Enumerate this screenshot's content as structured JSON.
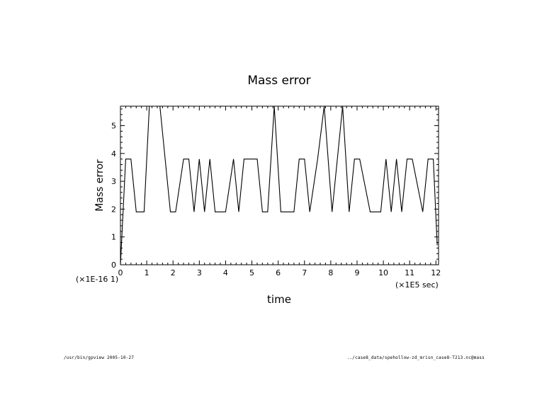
{
  "chart_data": {
    "type": "line",
    "title": "Mass error",
    "xlabel": "time",
    "ylabel": "Mass error",
    "x_unit_label": "(×1E5 sec)",
    "y_unit_label": "(×1E-16 1)",
    "xlim": [
      0,
      12.1
    ],
    "ylim": [
      0,
      5.7
    ],
    "x_ticks": [
      0,
      1,
      2,
      3,
      4,
      5,
      6,
      7,
      8,
      9,
      10,
      11,
      12
    ],
    "y_ticks": [
      0,
      1,
      2,
      3,
      4,
      5
    ],
    "grid": false,
    "legend": "none",
    "series": [
      {
        "color": "#000000",
        "x": [
          0,
          0.2,
          0.4,
          0.6,
          0.9,
          1.1,
          1.5,
          1.9,
          2.1,
          2.4,
          2.6,
          2.8,
          3.0,
          3.2,
          3.4,
          3.6,
          4.0,
          4.3,
          4.5,
          4.7,
          5.2,
          5.4,
          5.6,
          5.85,
          6.1,
          6.6,
          6.8,
          7.0,
          7.2,
          7.5,
          7.75,
          8.05,
          8.45,
          8.7,
          8.9,
          9.1,
          9.5,
          9.9,
          10.1,
          10.3,
          10.5,
          10.7,
          10.9,
          11.1,
          11.5,
          11.7,
          11.9,
          12.05
        ],
        "values": [
          0,
          3.8,
          3.8,
          1.9,
          1.9,
          5.7,
          5.7,
          1.9,
          1.9,
          3.8,
          3.8,
          1.9,
          3.8,
          1.9,
          3.8,
          1.9,
          1.9,
          3.8,
          1.9,
          3.8,
          3.8,
          1.9,
          1.9,
          5.7,
          1.9,
          1.9,
          3.8,
          3.8,
          1.9,
          3.8,
          5.7,
          1.9,
          5.7,
          1.9,
          3.8,
          3.8,
          1.9,
          1.9,
          3.8,
          1.9,
          3.8,
          1.9,
          3.8,
          3.8,
          1.9,
          3.8,
          3.8,
          0.7
        ]
      }
    ]
  },
  "footer": {
    "left": "/usr/bin/gpview  2005-10-27",
    "right": "../case8_data/spehollow-zd_mrisn_case8-T213.nc@mass"
  }
}
